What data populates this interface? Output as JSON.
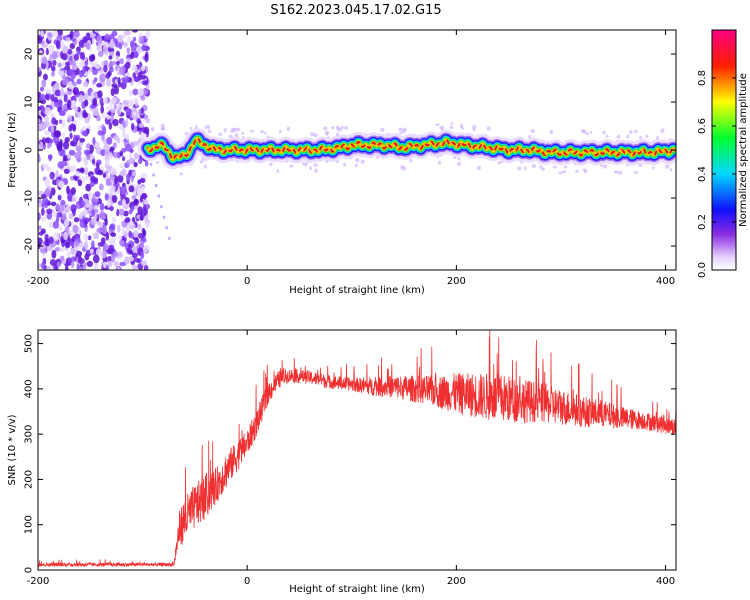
{
  "figure_title": "S162.2023.045.17.02.G15",
  "colors": {
    "snr_line": "#f03030",
    "ridge_center": "#e31a1c",
    "scatter_dot": "#7b2ff0"
  },
  "chart_data": [
    {
      "type": "heatmap",
      "title": "",
      "xlabel": "Height of straight line (km)",
      "ylabel": "Frequency (Hz)",
      "xlim": [
        -200,
        410
      ],
      "ylim": [
        -25,
        25
      ],
      "xticks": [
        -200,
        0,
        200,
        400
      ],
      "yticks": [
        -20,
        -10,
        0,
        10,
        20
      ],
      "colorbar": {
        "label": "Normalized spectral amplitude",
        "range": [
          0,
          1
        ],
        "ticks": [
          0,
          0.2,
          0.4,
          0.6,
          0.8
        ],
        "tick_labels": [
          "0.0",
          "0.2",
          "0.4",
          "0.6",
          "0.8"
        ],
        "colormap": "rainbow (white-violet-blue-cyan-green-yellow-red-magenta)"
      },
      "noise_region_x": [
        -200,
        -95
      ],
      "ridge": {
        "x": [
          -95,
          -90,
          -85,
          -80,
          -75,
          -70,
          -65,
          -60,
          -55,
          -50,
          -45,
          -40,
          -35,
          -30,
          -20,
          0,
          20,
          50,
          70,
          90,
          100,
          110,
          130,
          150,
          170,
          190,
          210,
          230,
          250,
          270,
          290,
          310,
          330,
          350,
          370,
          390,
          410
        ],
        "y": [
          0.0,
          0.5,
          1.0,
          0.8,
          -0.5,
          -1.5,
          -1.5,
          -1.2,
          0.0,
          2.0,
          1.5,
          1.0,
          0.5,
          0.0,
          0.0,
          0.0,
          0.0,
          0.0,
          0.0,
          0.5,
          1.0,
          1.0,
          1.0,
          0.5,
          1.0,
          1.5,
          1.0,
          0.5,
          0.0,
          0.0,
          -0.5,
          -0.5,
          -0.5,
          -0.5,
          -0.5,
          -0.5,
          0.0
        ]
      }
    },
    {
      "type": "line",
      "title": "",
      "xlabel": "Height of straight line (km)",
      "ylabel": "SNR (10 * v/v)",
      "xlim": [
        -200,
        410
      ],
      "ylim": [
        0,
        530
      ],
      "xticks": [
        -200,
        0,
        200,
        400
      ],
      "yticks": [
        0,
        100,
        200,
        300,
        400,
        500
      ],
      "series": [
        {
          "x": [
            -200,
            -150,
            -100,
            -70,
            -65,
            -60,
            -50,
            -40,
            -30,
            -20,
            -10,
            0,
            10,
            20,
            30,
            40,
            60,
            80,
            100,
            120,
            140,
            160,
            180,
            200,
            220,
            240,
            260,
            280,
            300,
            320,
            340,
            360,
            380,
            400,
            410
          ],
          "y": [
            12,
            12,
            12,
            12,
            90,
            110,
            140,
            160,
            185,
            220,
            250,
            280,
            330,
            390,
            420,
            430,
            425,
            415,
            410,
            405,
            405,
            400,
            395,
            390,
            385,
            380,
            375,
            370,
            360,
            350,
            345,
            335,
            330,
            320,
            315
          ],
          "spread": [
            4,
            4,
            4,
            4,
            40,
            50,
            50,
            50,
            40,
            40,
            35,
            30,
            30,
            25,
            20,
            15,
            15,
            15,
            15,
            20,
            25,
            30,
            35,
            45,
            50,
            55,
            50,
            45,
            40,
            35,
            30,
            25,
            20,
            20,
            20
          ]
        }
      ]
    }
  ]
}
